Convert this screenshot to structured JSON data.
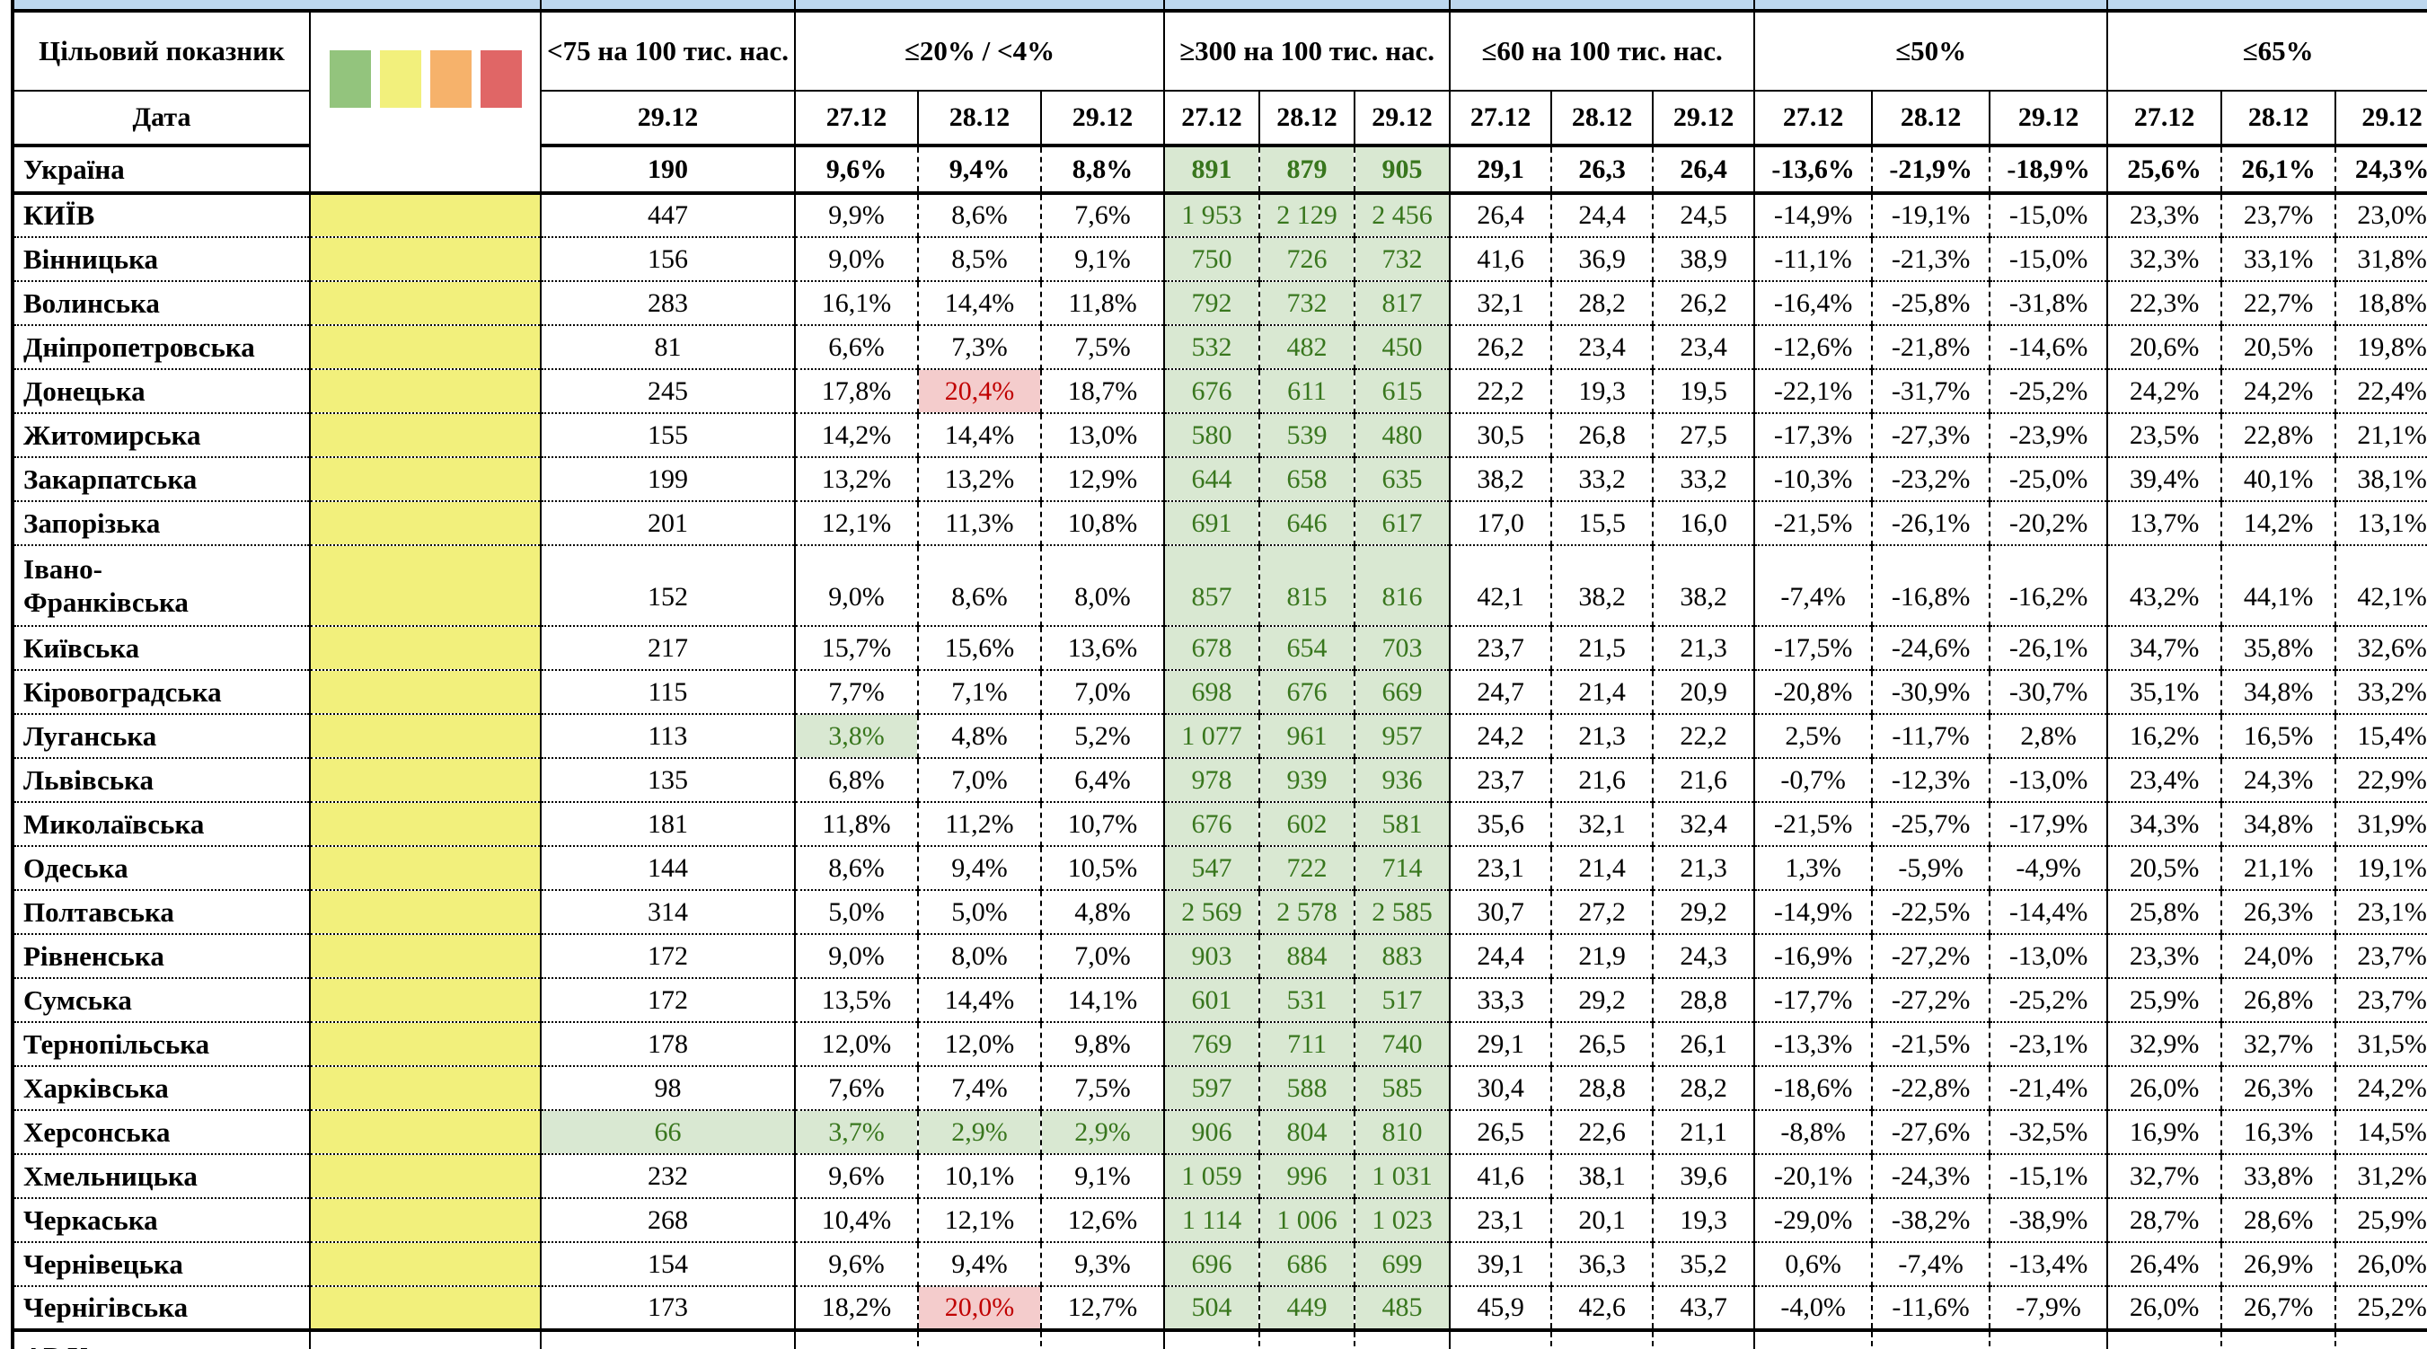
{
  "header": {
    "target_label": "Цільовий показник",
    "date_label": "Дата",
    "groups": [
      {
        "label": "<75 на 100 тис. нас.",
        "dates": [
          "29.12"
        ]
      },
      {
        "label": "≤20% / <4%",
        "dates": [
          "27.12",
          "28.12",
          "29.12"
        ]
      },
      {
        "label": "≥300 на 100 тис. нас.",
        "dates": [
          "27.12",
          "28.12",
          "29.12"
        ]
      },
      {
        "label": "≤60 на 100 тис. нас.",
        "dates": [
          "27.12",
          "28.12",
          "29.12"
        ]
      },
      {
        "label": "≤50%",
        "dates": [
          "27.12",
          "28.12",
          "29.12"
        ]
      },
      {
        "label": "≤65%",
        "dates": [
          "27.12",
          "28.12",
          "29.12"
        ]
      }
    ]
  },
  "colors": {
    "header_blue": "#bdd7ee",
    "column_yellow": "#f2f07c",
    "good_bg": "#d9e8d2",
    "good_text": "#38761d",
    "bad_bg": "#f4cccc",
    "bad_text": "#c00000",
    "legend": [
      "#93c47d",
      "#f2f07c",
      "#f6b26b",
      "#e06666"
    ]
  },
  "legend_swatch_names": [
    "green-swatch",
    "yellow-swatch",
    "orange-swatch",
    "red-swatch"
  ],
  "rows": [
    {
      "name": "Україна",
      "bold": true,
      "yellow": false,
      "solid_bottom": true,
      "values": [
        "190",
        "9,6%",
        "9,4%",
        "8,8%",
        "891",
        "879",
        "905",
        "29,1",
        "26,3",
        "26,4",
        "-13,6%",
        "-21,9%",
        "-18,9%",
        "25,6%",
        "26,1%",
        "24,3%"
      ]
    },
    {
      "name": "КИЇВ",
      "yellow": true,
      "values": [
        "447",
        "9,9%",
        "8,6%",
        "7,6%",
        "1 953",
        "2 129",
        "2 456",
        "26,4",
        "24,4",
        "24,5",
        "-14,9%",
        "-19,1%",
        "-15,0%",
        "23,3%",
        "23,7%",
        "23,0%"
      ]
    },
    {
      "name": "Вінницька",
      "yellow": true,
      "values": [
        "156",
        "9,0%",
        "8,5%",
        "9,1%",
        "750",
        "726",
        "732",
        "41,6",
        "36,9",
        "38,9",
        "-11,1%",
        "-21,3%",
        "-15,0%",
        "32,3%",
        "33,1%",
        "31,8%"
      ]
    },
    {
      "name": "Волинська",
      "yellow": true,
      "values": [
        "283",
        "16,1%",
        "14,4%",
        "11,8%",
        "792",
        "732",
        "817",
        "32,1",
        "28,2",
        "26,2",
        "-16,4%",
        "-25,8%",
        "-31,8%",
        "22,3%",
        "22,7%",
        "18,8%"
      ]
    },
    {
      "name": "Дніпропетровська",
      "yellow": true,
      "values": [
        "81",
        "6,6%",
        "7,3%",
        "7,5%",
        "532",
        "482",
        "450",
        "26,2",
        "23,4",
        "23,4",
        "-12,6%",
        "-21,8%",
        "-14,6%",
        "20,6%",
        "20,5%",
        "19,8%"
      ]
    },
    {
      "name": "Донецька",
      "yellow": true,
      "hl": {
        "2": "red"
      },
      "values": [
        "245",
        "17,8%",
        "20,4%",
        "18,7%",
        "676",
        "611",
        "615",
        "22,2",
        "19,3",
        "19,5",
        "-22,1%",
        "-31,7%",
        "-25,2%",
        "24,2%",
        "24,2%",
        "22,4%"
      ]
    },
    {
      "name": "Житомирська",
      "yellow": true,
      "values": [
        "155",
        "14,2%",
        "14,4%",
        "13,0%",
        "580",
        "539",
        "480",
        "30,5",
        "26,8",
        "27,5",
        "-17,3%",
        "-27,3%",
        "-23,9%",
        "23,5%",
        "22,8%",
        "21,1%"
      ]
    },
    {
      "name": "Закарпатська",
      "yellow": true,
      "values": [
        "199",
        "13,2%",
        "13,2%",
        "12,9%",
        "644",
        "658",
        "635",
        "38,2",
        "33,2",
        "33,2",
        "-10,3%",
        "-23,2%",
        "-25,0%",
        "39,4%",
        "40,1%",
        "38,1%"
      ]
    },
    {
      "name": "Запорізька",
      "yellow": true,
      "values": [
        "201",
        "12,1%",
        "11,3%",
        "10,8%",
        "691",
        "646",
        "617",
        "17,0",
        "15,5",
        "16,0",
        "-21,5%",
        "-26,1%",
        "-20,2%",
        "13,7%",
        "14,2%",
        "13,1%"
      ]
    },
    {
      "name": "Івано-\nФранківська",
      "yellow": true,
      "tall": true,
      "values": [
        "152",
        "9,0%",
        "8,6%",
        "8,0%",
        "857",
        "815",
        "816",
        "42,1",
        "38,2",
        "38,2",
        "-7,4%",
        "-16,8%",
        "-16,2%",
        "43,2%",
        "44,1%",
        "42,1%"
      ]
    },
    {
      "name": "Київська",
      "yellow": true,
      "values": [
        "217",
        "15,7%",
        "15,6%",
        "13,6%",
        "678",
        "654",
        "703",
        "23,7",
        "21,5",
        "21,3",
        "-17,5%",
        "-24,6%",
        "-26,1%",
        "34,7%",
        "35,8%",
        "32,6%"
      ]
    },
    {
      "name": "Кіровоградська",
      "yellow": true,
      "values": [
        "115",
        "7,7%",
        "7,1%",
        "7,0%",
        "698",
        "676",
        "669",
        "24,7",
        "21,4",
        "20,9",
        "-20,8%",
        "-30,9%",
        "-30,7%",
        "35,1%",
        "34,8%",
        "33,2%"
      ]
    },
    {
      "name": "Луганська",
      "yellow": true,
      "hl": {
        "1": "green"
      },
      "values": [
        "113",
        "3,8%",
        "4,8%",
        "5,2%",
        "1 077",
        "961",
        "957",
        "24,2",
        "21,3",
        "22,2",
        "2,5%",
        "-11,7%",
        "2,8%",
        "16,2%",
        "16,5%",
        "15,4%"
      ]
    },
    {
      "name": "Львівська",
      "yellow": true,
      "values": [
        "135",
        "6,8%",
        "7,0%",
        "6,4%",
        "978",
        "939",
        "936",
        "23,7",
        "21,6",
        "21,6",
        "-0,7%",
        "-12,3%",
        "-13,0%",
        "23,4%",
        "24,3%",
        "22,9%"
      ]
    },
    {
      "name": "Миколаївська",
      "yellow": true,
      "values": [
        "181",
        "11,8%",
        "11,2%",
        "10,7%",
        "676",
        "602",
        "581",
        "35,6",
        "32,1",
        "32,4",
        "-21,5%",
        "-25,7%",
        "-17,9%",
        "34,3%",
        "34,8%",
        "31,9%"
      ]
    },
    {
      "name": "Одеська",
      "yellow": true,
      "values": [
        "144",
        "8,6%",
        "9,4%",
        "10,5%",
        "547",
        "722",
        "714",
        "23,1",
        "21,4",
        "21,3",
        "1,3%",
        "-5,9%",
        "-4,9%",
        "20,5%",
        "21,1%",
        "19,1%"
      ]
    },
    {
      "name": "Полтавська",
      "yellow": true,
      "values": [
        "314",
        "5,0%",
        "5,0%",
        "4,8%",
        "2 569",
        "2 578",
        "2 585",
        "30,7",
        "27,2",
        "29,2",
        "-14,9%",
        "-22,5%",
        "-14,4%",
        "25,8%",
        "26,3%",
        "23,1%"
      ]
    },
    {
      "name": "Рівненська",
      "yellow": true,
      "values": [
        "172",
        "9,0%",
        "8,0%",
        "7,0%",
        "903",
        "884",
        "883",
        "24,4",
        "21,9",
        "24,3",
        "-16,9%",
        "-27,2%",
        "-13,0%",
        "23,3%",
        "24,0%",
        "23,7%"
      ]
    },
    {
      "name": "Сумська",
      "yellow": true,
      "values": [
        "172",
        "13,5%",
        "14,4%",
        "14,1%",
        "601",
        "531",
        "517",
        "33,3",
        "29,2",
        "28,8",
        "-17,7%",
        "-27,2%",
        "-25,2%",
        "25,9%",
        "26,8%",
        "23,7%"
      ]
    },
    {
      "name": "Тернопільська",
      "yellow": true,
      "values": [
        "178",
        "12,0%",
        "12,0%",
        "9,8%",
        "769",
        "711",
        "740",
        "29,1",
        "26,5",
        "26,1",
        "-13,3%",
        "-21,5%",
        "-23,1%",
        "32,9%",
        "32,7%",
        "31,5%"
      ]
    },
    {
      "name": "Харківська",
      "yellow": true,
      "values": [
        "98",
        "7,6%",
        "7,4%",
        "7,5%",
        "597",
        "588",
        "585",
        "30,4",
        "28,8",
        "28,2",
        "-18,6%",
        "-22,8%",
        "-21,4%",
        "26,0%",
        "26,3%",
        "24,2%"
      ]
    },
    {
      "name": "Херсонська",
      "yellow": true,
      "hl": {
        "0": "green",
        "1": "green",
        "2": "green",
        "3": "green"
      },
      "values": [
        "66",
        "3,7%",
        "2,9%",
        "2,9%",
        "906",
        "804",
        "810",
        "26,5",
        "22,6",
        "21,1",
        "-8,8%",
        "-27,6%",
        "-32,5%",
        "16,9%",
        "16,3%",
        "14,5%"
      ]
    },
    {
      "name": "Хмельницька",
      "yellow": true,
      "values": [
        "232",
        "9,6%",
        "10,1%",
        "9,1%",
        "1 059",
        "996",
        "1 031",
        "41,6",
        "38,1",
        "39,6",
        "-20,1%",
        "-24,3%",
        "-15,1%",
        "32,7%",
        "33,8%",
        "31,2%"
      ]
    },
    {
      "name": "Черкаська",
      "yellow": true,
      "values": [
        "268",
        "10,4%",
        "12,1%",
        "12,6%",
        "1 114",
        "1 006",
        "1 023",
        "23,1",
        "20,1",
        "19,3",
        "-29,0%",
        "-38,2%",
        "-38,9%",
        "28,7%",
        "28,6%",
        "25,9%"
      ]
    },
    {
      "name": "Чернівецька",
      "yellow": true,
      "values": [
        "154",
        "9,6%",
        "9,4%",
        "9,3%",
        "696",
        "686",
        "699",
        "39,1",
        "36,3",
        "35,2",
        "0,6%",
        "-7,4%",
        "-13,4%",
        "26,4%",
        "26,9%",
        "26,0%"
      ]
    },
    {
      "name": "Чернігівська",
      "yellow": true,
      "solid_bottom": true,
      "hl": {
        "2": "red"
      },
      "values": [
        "173",
        "18,2%",
        "20,0%",
        "12,7%",
        "504",
        "449",
        "485",
        "45,9",
        "42,6",
        "43,7",
        "-4,0%",
        "-11,6%",
        "-7,9%",
        "26,0%",
        "26,7%",
        "25,2%"
      ]
    },
    {
      "name": "АР Крим",
      "yellow": false,
      "partial": true,
      "values": [
        "",
        "",
        "",
        "",
        "",
        "",
        "",
        "",
        "",
        "",
        "",
        "",
        "",
        "",
        "",
        ""
      ]
    }
  ]
}
